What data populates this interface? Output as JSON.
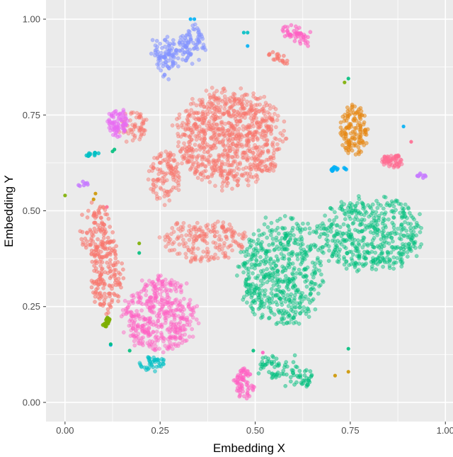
{
  "chart_data": {
    "type": "scatter",
    "title": "",
    "xlabel": "Embedding X",
    "ylabel": "Embedding Y",
    "xlim": [
      -0.05,
      1.02
    ],
    "ylim": [
      -0.05,
      1.05
    ],
    "x_ticks": [
      "0.00",
      "0.25",
      "0.50",
      "0.75",
      "1.00"
    ],
    "y_ticks": [
      "0.00",
      "0.25",
      "0.50",
      "0.75",
      "1.00"
    ],
    "grid": true,
    "legend": "none",
    "colors": {
      "panel_background": "#ebebeb",
      "grid": "#ffffff",
      "text": "#4d4d4d"
    },
    "clusters": [
      {
        "center": [
          0.43,
          0.69
        ],
        "spread": [
          0.1,
          0.09
        ],
        "count": 900,
        "color": "#F8766D",
        "opacity": 0.45,
        "shape": "blob"
      },
      {
        "center": [
          0.26,
          0.59
        ],
        "spread": [
          0.03,
          0.05
        ],
        "count": 120,
        "color": "#F8766D",
        "opacity": 0.45,
        "shape": "blob"
      },
      {
        "center": [
          0.36,
          0.42
        ],
        "spread": [
          0.08,
          0.04
        ],
        "count": 200,
        "color": "#F8766D",
        "opacity": 0.45,
        "shape": "blob"
      },
      {
        "center": [
          0.18,
          0.72
        ],
        "spread": [
          0.03,
          0.03
        ],
        "count": 60,
        "color": "#F8766D",
        "opacity": 0.45,
        "shape": "blob"
      },
      {
        "center": [
          0.57,
          0.34
        ],
        "spread": [
          0.08,
          0.1
        ],
        "count": 550,
        "color": "#00BF7D",
        "opacity": 0.45,
        "shape": "blob"
      },
      {
        "center": [
          0.8,
          0.44
        ],
        "spread": [
          0.1,
          0.07
        ],
        "count": 500,
        "color": "#00BF7D",
        "opacity": 0.45,
        "shape": "blob"
      },
      {
        "center": [
          0.25,
          0.23
        ],
        "spread": [
          0.07,
          0.07
        ],
        "count": 450,
        "color": "#FF61C3",
        "opacity": 0.45,
        "shape": "blob"
      },
      {
        "center": [
          0.08,
          0.45
        ],
        "spread": [
          0.03,
          0.05
        ],
        "count": 100,
        "color": "#F8766D",
        "opacity": 0.55,
        "shape": "blob"
      },
      {
        "center": [
          0.11,
          0.33
        ],
        "spread": [
          0.03,
          0.07
        ],
        "count": 160,
        "color": "#F8766D",
        "opacity": 0.55,
        "shape": "blob"
      },
      {
        "center": [
          0.3,
          0.92
        ],
        "spread": [
          0.07,
          0.02
        ],
        "count": 180,
        "color": "#8494FF",
        "opacity": 0.55,
        "shape": "band",
        "angle": 28
      },
      {
        "center": [
          0.14,
          0.73
        ],
        "spread": [
          0.02,
          0.025
        ],
        "count": 80,
        "color": "#E76BF3",
        "opacity": 0.55,
        "shape": "blob"
      },
      {
        "center": [
          0.76,
          0.71
        ],
        "spread": [
          0.025,
          0.05
        ],
        "count": 140,
        "color": "#E68613",
        "opacity": 0.55,
        "shape": "blob"
      },
      {
        "center": [
          0.86,
          0.63
        ],
        "spread": [
          0.02,
          0.012
        ],
        "count": 60,
        "color": "#FF6C91",
        "opacity": 0.55,
        "shape": "blob"
      },
      {
        "center": [
          0.23,
          0.1
        ],
        "spread": [
          0.025,
          0.015
        ],
        "count": 40,
        "color": "#00BFC4",
        "opacity": 0.55,
        "shape": "blob"
      },
      {
        "center": [
          0.47,
          0.05
        ],
        "spread": [
          0.02,
          0.03
        ],
        "count": 70,
        "color": "#FF61C3",
        "opacity": 0.55,
        "shape": "blob"
      },
      {
        "center": [
          0.58,
          0.08
        ],
        "spread": [
          0.07,
          0.015
        ],
        "count": 90,
        "color": "#00BF7D",
        "opacity": 0.5,
        "shape": "band",
        "angle": -20
      },
      {
        "center": [
          0.61,
          0.96
        ],
        "spread": [
          0.04,
          0.01
        ],
        "count": 50,
        "color": "#FF61C3",
        "opacity": 0.6,
        "shape": "band",
        "angle": -25
      },
      {
        "center": [
          0.56,
          0.9
        ],
        "spread": [
          0.03,
          0.006
        ],
        "count": 20,
        "color": "#F8766D",
        "opacity": 0.6,
        "shape": "band",
        "angle": -30
      },
      {
        "center": [
          0.11,
          0.21
        ],
        "spread": [
          0.012,
          0.003
        ],
        "count": 20,
        "color": "#7CAE00",
        "opacity": 0.9,
        "shape": "band",
        "angle": 60
      },
      {
        "center": [
          0.07,
          0.65
        ],
        "spread": [
          0.02,
          0.004
        ],
        "count": 14,
        "color": "#00BFC4",
        "opacity": 0.8,
        "shape": "band",
        "angle": 25
      },
      {
        "center": [
          0.72,
          0.61
        ],
        "spread": [
          0.02,
          0.003
        ],
        "count": 14,
        "color": "#00B0F6",
        "opacity": 0.8,
        "shape": "band",
        "angle": 5
      },
      {
        "center": [
          0.94,
          0.59
        ],
        "spread": [
          0.015,
          0.003
        ],
        "count": 10,
        "color": "#C77CFF",
        "opacity": 0.8,
        "shape": "band",
        "angle": -5
      },
      {
        "center": [
          0.05,
          0.57
        ],
        "spread": [
          0.015,
          0.003
        ],
        "count": 8,
        "color": "#C77CFF",
        "opacity": 0.8,
        "shape": "band",
        "angle": -5
      }
    ],
    "points": [
      {
        "x": 0.33,
        "y": 1.0,
        "color": "#00B0F6"
      },
      {
        "x": 0.34,
        "y": 1.0,
        "color": "#00B0F6"
      },
      {
        "x": 0.47,
        "y": 0.965,
        "color": "#00BFC4"
      },
      {
        "x": 0.48,
        "y": 0.965,
        "color": "#00BFC4"
      },
      {
        "x": 0.48,
        "y": 0.93,
        "color": "#00B0F6"
      },
      {
        "x": 0.745,
        "y": 0.845,
        "color": "#00BF7D"
      },
      {
        "x": 0.735,
        "y": 0.835,
        "color": "#7CAE00"
      },
      {
        "x": 0.89,
        "y": 0.72,
        "color": "#00B0F6"
      },
      {
        "x": 0.91,
        "y": 0.68,
        "color": "#FF6C91"
      },
      {
        "x": 0.0,
        "y": 0.54,
        "color": "#7CAE00"
      },
      {
        "x": 0.075,
        "y": 0.53,
        "color": "#CD9600"
      },
      {
        "x": 0.08,
        "y": 0.545,
        "color": "#CD9600"
      },
      {
        "x": 0.11,
        "y": 0.51,
        "color": "#FF6C91"
      },
      {
        "x": 0.125,
        "y": 0.655,
        "color": "#00BF7D"
      },
      {
        "x": 0.13,
        "y": 0.66,
        "color": "#00BF7D"
      },
      {
        "x": 0.195,
        "y": 0.415,
        "color": "#7CAE00"
      },
      {
        "x": 0.195,
        "y": 0.39,
        "color": "#00BF7D"
      },
      {
        "x": 0.12,
        "y": 0.15,
        "color": "#00A9FF"
      },
      {
        "x": 0.12,
        "y": 0.152,
        "color": "#00BF7D"
      },
      {
        "x": 0.17,
        "y": 0.135,
        "color": "#00BF7D"
      },
      {
        "x": 0.495,
        "y": 0.135,
        "color": "#00BF7D"
      },
      {
        "x": 0.52,
        "y": 0.13,
        "color": "#FF61C3"
      },
      {
        "x": 0.71,
        "y": 0.07,
        "color": "#CD9600"
      },
      {
        "x": 0.745,
        "y": 0.08,
        "color": "#CD9600"
      },
      {
        "x": 0.745,
        "y": 0.14,
        "color": "#00BF7D"
      }
    ]
  }
}
